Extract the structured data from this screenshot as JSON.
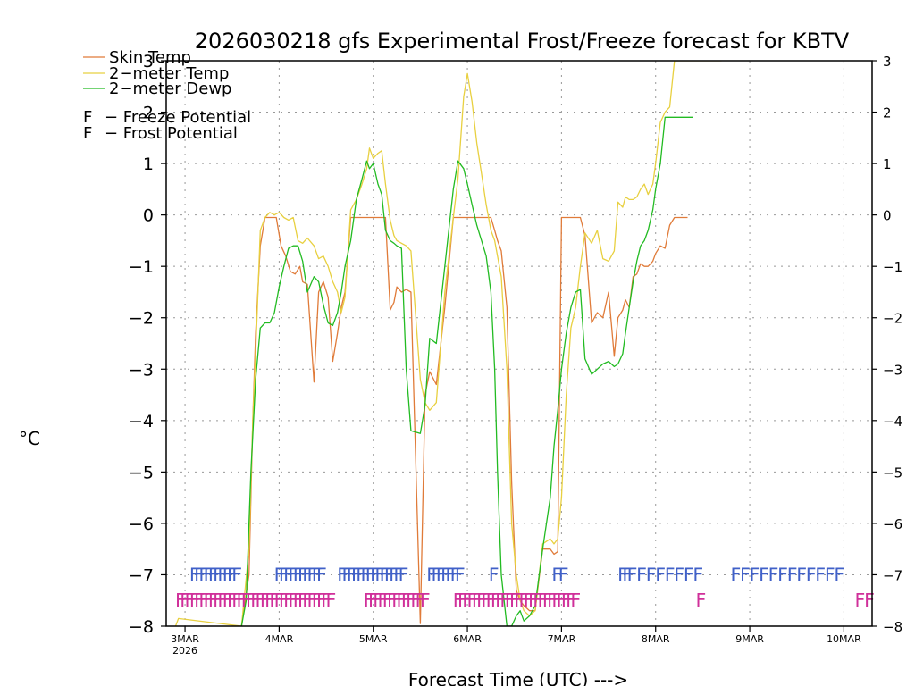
{
  "chart_data": {
    "type": "line",
    "title": "2026030218 gfs Experimental Frost/Freeze forecast for KBTV",
    "xlabel": "Forecast Time (UTC) --->",
    "ylabel": "°C",
    "ylim": [
      -8,
      3
    ],
    "grid": true,
    "x_unit": "days since 2026-03-03 00Z",
    "xlim": [
      -0.2,
      7.3
    ],
    "x_ticks": [
      {
        "x": 0,
        "label": "3MAR",
        "sublabel": "2026"
      },
      {
        "x": 1,
        "label": "4MAR"
      },
      {
        "x": 2,
        "label": "5MAR"
      },
      {
        "x": 3,
        "label": "6MAR"
      },
      {
        "x": 4,
        "label": "7MAR"
      },
      {
        "x": 5,
        "label": "8MAR"
      },
      {
        "x": 6,
        "label": "9MAR"
      },
      {
        "x": 7,
        "label": "10MAR"
      }
    ],
    "y_ticks": [
      3,
      2,
      1,
      0,
      -1,
      -2,
      -3,
      -4,
      -5,
      -6,
      -7,
      -8
    ],
    "y_tick_labels": [
      "3",
      "2",
      "1",
      "0",
      "−1",
      "−2",
      "−3",
      "−4",
      "−5",
      "−6",
      "−7",
      "−8"
    ],
    "legend": [
      {
        "label": "Skin Temp",
        "color": "#e07b39",
        "marker": "line"
      },
      {
        "label": "2−meter Temp",
        "color": "#e8d040",
        "marker": "line"
      },
      {
        "label": "2−meter Dewp",
        "color": "#22bb22",
        "marker": "line"
      },
      {
        "label": "F − Freeze Potential",
        "color": "#d0309a",
        "marker": "F"
      },
      {
        "label": "F − Frost Potential",
        "color": "#4060c8",
        "marker": "F"
      }
    ],
    "series": [
      {
        "name": "Skin Temp",
        "color": "#e07b39",
        "x": [
          0.6,
          0.68,
          0.72,
          0.75,
          0.8,
          0.85,
          0.9,
          0.97,
          1.02,
          1.07,
          1.12,
          1.17,
          1.22,
          1.25,
          1.3,
          1.37,
          1.42,
          1.47,
          1.52,
          1.57,
          1.62,
          1.66,
          1.7,
          1.76,
          1.82,
          1.88,
          1.93,
          1.96,
          2.0,
          2.05,
          2.09,
          2.13,
          2.18,
          2.22,
          2.25,
          2.3,
          2.35,
          2.4,
          2.5,
          2.55,
          2.6,
          2.67,
          2.76,
          2.85,
          2.9,
          2.96,
          3.0,
          3.05,
          3.1,
          3.15,
          3.2,
          3.25,
          3.29,
          3.32,
          3.36,
          3.42,
          3.47,
          3.52,
          3.56,
          3.6,
          3.66,
          3.72,
          3.8,
          3.88,
          3.92,
          3.96,
          4.0,
          4.05,
          4.1,
          4.15,
          4.2,
          4.25,
          4.32,
          4.38,
          4.44,
          4.5,
          4.56,
          4.6,
          4.65,
          4.68,
          4.72,
          4.76,
          4.8,
          4.84,
          4.88,
          4.92,
          4.97,
          5.0,
          5.05,
          5.1,
          5.15,
          5.2,
          5.3,
          5.34
        ],
        "y": [
          -8,
          -7,
          -4,
          -2.3,
          -0.6,
          -0.05,
          -0.05,
          -0.05,
          -0.6,
          -0.8,
          -1.1,
          -1.15,
          -1.0,
          -1.3,
          -1.35,
          -3.25,
          -1.5,
          -1.3,
          -1.6,
          -2.85,
          -2.3,
          -1.8,
          -1.5,
          -0.05,
          -0.05,
          -0.05,
          -0.05,
          -0.05,
          -0.05,
          -0.05,
          -0.05,
          -0.05,
          -1.85,
          -1.7,
          -1.4,
          -1.5,
          -1.45,
          -1.5,
          -7.95,
          -3.5,
          -3.05,
          -3.3,
          -1.8,
          -0.05,
          -0.05,
          -0.05,
          -0.05,
          -0.05,
          -0.05,
          -0.05,
          -0.05,
          -0.05,
          -0.3,
          -0.5,
          -0.7,
          -1.8,
          -5.2,
          -7.3,
          -7.5,
          -7.6,
          -7.7,
          -7.7,
          -6.5,
          -6.5,
          -6.6,
          -6.55,
          -0.05,
          -0.05,
          -0.05,
          -0.05,
          -0.05,
          -0.4,
          -2.1,
          -1.9,
          -2.0,
          -1.5,
          -2.75,
          -2.0,
          -1.85,
          -1.65,
          -1.8,
          -1.2,
          -1.15,
          -0.95,
          -1.0,
          -1.0,
          -0.9,
          -0.75,
          -0.6,
          -0.65,
          -0.2,
          -0.05,
          -0.05,
          -0.05
        ]
      },
      {
        "name": "2-meter Temp",
        "color": "#e8d040",
        "x": [
          -0.1,
          -0.07,
          0.6,
          0.68,
          0.72,
          0.75,
          0.8,
          0.85,
          0.9,
          0.95,
          1.0,
          1.05,
          1.1,
          1.15,
          1.2,
          1.25,
          1.3,
          1.37,
          1.42,
          1.47,
          1.52,
          1.57,
          1.62,
          1.66,
          1.7,
          1.76,
          1.82,
          1.88,
          1.93,
          1.96,
          2.0,
          2.05,
          2.09,
          2.13,
          2.18,
          2.22,
          2.25,
          2.3,
          2.35,
          2.4,
          2.5,
          2.55,
          2.6,
          2.67,
          2.76,
          2.85,
          2.9,
          2.96,
          3.0,
          3.05,
          3.1,
          3.15,
          3.2,
          3.25,
          3.29,
          3.32,
          3.36,
          3.42,
          3.47,
          3.52,
          3.56,
          3.6,
          3.66,
          3.72,
          3.8,
          3.88,
          3.92,
          3.96,
          4.0,
          4.05,
          4.1,
          4.15,
          4.2,
          4.25,
          4.32,
          4.38,
          4.44,
          4.5,
          4.56,
          4.6,
          4.65,
          4.68,
          4.72,
          4.76,
          4.8,
          4.84,
          4.88,
          4.92,
          4.97,
          5.0,
          5.05,
          5.1,
          5.15,
          5.2,
          5.3,
          5.34,
          5.4,
          5.5,
          5.6,
          5.7
        ],
        "y": [
          -8,
          -7.85,
          -8,
          -6.5,
          -4.0,
          -2.7,
          -0.3,
          -0.05,
          0.05,
          0.0,
          0.05,
          -0.05,
          -0.1,
          -0.05,
          -0.5,
          -0.55,
          -0.45,
          -0.6,
          -0.85,
          -0.8,
          -1.0,
          -1.3,
          -1.5,
          -1.9,
          -1.6,
          0.1,
          0.3,
          0.6,
          0.9,
          1.3,
          1.1,
          1.2,
          1.25,
          0.6,
          -0.1,
          -0.4,
          -0.5,
          -0.55,
          -0.6,
          -0.7,
          -3.2,
          -3.65,
          -3.8,
          -3.65,
          -1.5,
          -0.05,
          0.7,
          2.3,
          2.75,
          2.2,
          1.4,
          0.8,
          0.2,
          -0.3,
          -0.5,
          -0.8,
          -1.2,
          -3.0,
          -6.0,
          -7.0,
          -7.5,
          -7.7,
          -7.8,
          -7.7,
          -6.4,
          -6.3,
          -6.4,
          -6.3,
          -5.5,
          -3.5,
          -2.2,
          -1.8,
          -1.0,
          -0.35,
          -0.55,
          -0.3,
          -0.85,
          -0.9,
          -0.7,
          0.25,
          0.15,
          0.35,
          0.3,
          0.3,
          0.35,
          0.5,
          0.6,
          0.4,
          0.6,
          1.0,
          1.8,
          2.0,
          2.1,
          3.0,
          3.0,
          3.0,
          3.0,
          3.0,
          3.0,
          3.0
        ]
      },
      {
        "name": "2-meter Dewp",
        "color": "#22bb22",
        "x": [
          0.6,
          0.65,
          0.7,
          0.75,
          0.8,
          0.85,
          0.9,
          0.95,
          1.0,
          1.05,
          1.1,
          1.15,
          1.2,
          1.25,
          1.3,
          1.37,
          1.42,
          1.47,
          1.52,
          1.57,
          1.62,
          1.66,
          1.7,
          1.76,
          1.82,
          1.88,
          1.93,
          1.96,
          2.0,
          2.05,
          2.09,
          2.13,
          2.18,
          2.22,
          2.25,
          2.3,
          2.35,
          2.4,
          2.5,
          2.55,
          2.6,
          2.67,
          2.76,
          2.85,
          2.9,
          2.96,
          3.0,
          3.05,
          3.1,
          3.15,
          3.2,
          3.25,
          3.29,
          3.32,
          3.36,
          3.42,
          3.47,
          3.52,
          3.56,
          3.6,
          3.66,
          3.72,
          3.8,
          3.88,
          3.92,
          3.96,
          4.0,
          4.05,
          4.1,
          4.15,
          4.2,
          4.25,
          4.32,
          4.38,
          4.44,
          4.5,
          4.56,
          4.6,
          4.65,
          4.68,
          4.72,
          4.76,
          4.8,
          4.84,
          4.88,
          4.92,
          4.97,
          5.0,
          5.05,
          5.1,
          5.15,
          5.2,
          5.3,
          5.34,
          5.4
        ],
        "y": [
          -8,
          -7.5,
          -5.0,
          -3.2,
          -2.2,
          -2.1,
          -2.1,
          -1.9,
          -1.4,
          -1.0,
          -0.65,
          -0.6,
          -0.6,
          -0.9,
          -1.5,
          -1.2,
          -1.3,
          -1.75,
          -2.1,
          -2.15,
          -1.9,
          -1.5,
          -1.0,
          -0.5,
          0.3,
          0.7,
          1.05,
          0.9,
          1.0,
          0.6,
          0.4,
          -0.3,
          -0.5,
          -0.55,
          -0.6,
          -0.65,
          -3.0,
          -4.2,
          -4.25,
          -3.7,
          -2.4,
          -2.5,
          -1.0,
          0.5,
          1.05,
          0.9,
          0.6,
          0.2,
          -0.2,
          -0.5,
          -0.8,
          -1.5,
          -3.0,
          -5.0,
          -7.0,
          -8.0,
          -8.0,
          -7.8,
          -7.7,
          -7.9,
          -7.8,
          -7.6,
          -6.5,
          -5.5,
          -4.5,
          -3.8,
          -3.0,
          -2.3,
          -1.8,
          -1.5,
          -1.45,
          -2.8,
          -3.1,
          -3.0,
          -2.9,
          -2.85,
          -2.95,
          -2.9,
          -2.7,
          -2.3,
          -1.8,
          -1.3,
          -0.9,
          -0.6,
          -0.5,
          -0.3,
          0.1,
          0.5,
          1.0,
          1.9,
          1.9,
          1.9,
          1.9,
          1.9,
          1.9
        ]
      }
    ],
    "markers": [
      {
        "name": "Frost Potential",
        "color": "#4060c8",
        "y": -7,
        "char": "F",
        "x": [
          0.1,
          0.15,
          0.2,
          0.25,
          0.3,
          0.35,
          0.4,
          0.45,
          0.5,
          0.55,
          1.0,
          1.05,
          1.1,
          1.15,
          1.2,
          1.25,
          1.3,
          1.35,
          1.4,
          1.45,
          1.67,
          1.72,
          1.77,
          1.82,
          1.87,
          1.92,
          1.97,
          2.02,
          2.07,
          2.12,
          2.17,
          2.22,
          2.27,
          2.32,
          2.62,
          2.67,
          2.72,
          2.77,
          2.82,
          2.87,
          2.92,
          3.28,
          3.95,
          4.02,
          4.65,
          4.7,
          4.75,
          4.85,
          4.95,
          5.05,
          5.15,
          5.25,
          5.35,
          5.45,
          5.85,
          5.95,
          6.05,
          6.15,
          6.25,
          6.35,
          6.45,
          6.55,
          6.65,
          6.75,
          6.85,
          6.95
        ]
      },
      {
        "name": "Freeze Potential",
        "color": "#d0309a",
        "y": -7.5,
        "char": "F",
        "x": [
          -0.05,
          0.0,
          0.05,
          0.1,
          0.15,
          0.2,
          0.25,
          0.3,
          0.35,
          0.4,
          0.45,
          0.5,
          0.55,
          0.6,
          0.65,
          0.7,
          0.75,
          0.8,
          0.85,
          0.9,
          0.95,
          1.0,
          1.05,
          1.1,
          1.15,
          1.2,
          1.25,
          1.3,
          1.35,
          1.4,
          1.45,
          1.5,
          1.55,
          1.95,
          2.0,
          2.05,
          2.1,
          2.15,
          2.2,
          2.25,
          2.3,
          2.35,
          2.4,
          2.45,
          2.5,
          2.55,
          2.9,
          2.95,
          3.0,
          3.05,
          3.1,
          3.15,
          3.2,
          3.25,
          3.3,
          3.35,
          3.4,
          3.45,
          3.5,
          3.55,
          3.6,
          3.65,
          3.7,
          3.75,
          3.8,
          3.85,
          3.9,
          3.95,
          4.0,
          4.05,
          4.1,
          4.15,
          5.48,
          7.17,
          7.27
        ]
      }
    ]
  }
}
